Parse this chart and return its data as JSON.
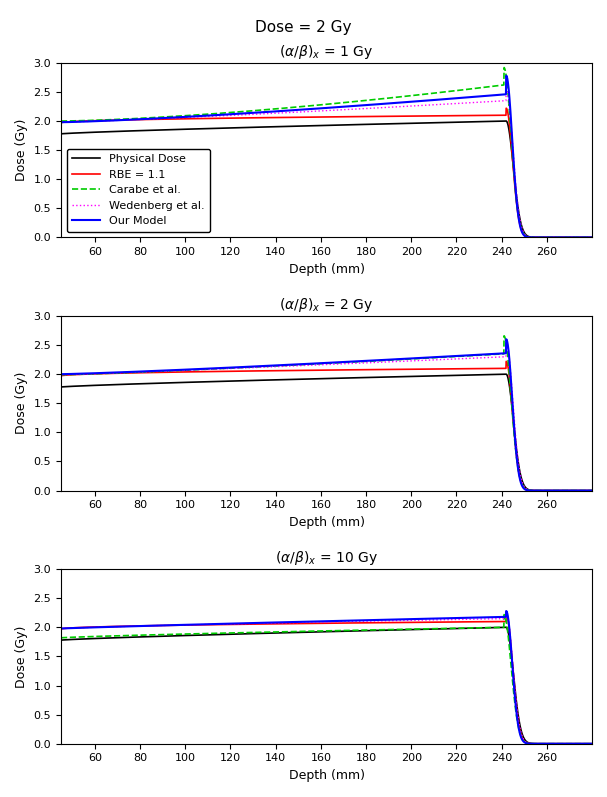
{
  "suptitle": "Dose = 2 Gy",
  "subtitles": [
    "$(\\alpha/\\beta)_x$ = 1 Gy",
    "$(\\alpha/\\beta)_x$ = 2 Gy",
    "$(\\alpha/\\beta)_x$ = 10 Gy"
  ],
  "xlabel": "Depth (mm)",
  "ylabel": "Dose (Gy)",
  "xlim": [
    45,
    280
  ],
  "ylim": [
    0,
    3.0
  ],
  "yticks": [
    0,
    0.5,
    1.0,
    1.5,
    2.0,
    2.5,
    3.0
  ],
  "xticks": [
    60,
    80,
    100,
    120,
    140,
    160,
    180,
    200,
    220,
    240,
    260
  ],
  "line_styles": {
    "physical": {
      "color": "#000000",
      "lw": 1.2,
      "ls": "-"
    },
    "rbe11": {
      "color": "#FF0000",
      "lw": 1.2,
      "ls": "-"
    },
    "carabe": {
      "color": "#00CC00",
      "lw": 1.2,
      "ls": "--"
    },
    "wedenberg": {
      "color": "#FF00FF",
      "lw": 1.0,
      "ls": ":"
    },
    "ourmodel": {
      "color": "#0000FF",
      "lw": 1.5,
      "ls": "-"
    }
  },
  "legend_labels": [
    "Physical Dose",
    "RBE = 1.1",
    "Carabe et al.",
    "Wedenberg et al.",
    "Our Model"
  ],
  "background_color": "#ffffff",
  "fig_width": 6.07,
  "fig_height": 7.97,
  "dpi": 100
}
